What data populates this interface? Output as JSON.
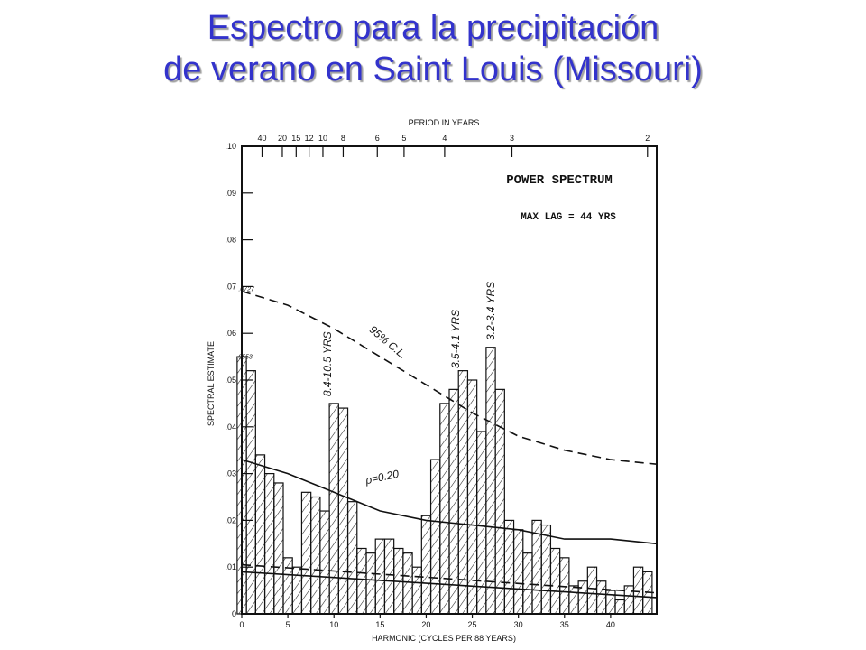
{
  "slide": {
    "title_line1": "Espectro para la precipitación",
    "title_line2": "de verano en Saint Louis (Missouri)"
  },
  "colors": {
    "title": "#3333cc",
    "ink": "#111111"
  },
  "chart_data": {
    "type": "bar",
    "title": "POWER SPECTRUM",
    "subtitle": "MAX LAG = 44 YRS",
    "xlabel": "HARMONIC (CYCLES PER 88 YEARS)",
    "ylabel": "SPECTRAL ESTIMATE",
    "top_axis_label": "PERIOD IN YEARS",
    "xlim": [
      0,
      45
    ],
    "ylim": [
      0,
      0.1
    ],
    "x_ticks": [
      0,
      5,
      10,
      15,
      20,
      25,
      30,
      35,
      40
    ],
    "x_tick_labels": [
      "0",
      "5",
      "10",
      "15",
      "20",
      "25",
      "30",
      "35",
      "40"
    ],
    "y_ticks": [
      0,
      0.01,
      0.02,
      0.03,
      0.04,
      0.05,
      0.06,
      0.07,
      0.08,
      0.09,
      0.1
    ],
    "y_tick_labels": [
      "0",
      ".01",
      ".02",
      ".03",
      ".04",
      ".05",
      ".06",
      ".07",
      ".08",
      ".09",
      ".10"
    ],
    "period_labels": [
      {
        "label": "40",
        "x": 2.2
      },
      {
        "label": "20",
        "x": 4.4
      },
      {
        "label": "15",
        "x": 5.9
      },
      {
        "label": "12",
        "x": 7.3
      },
      {
        "label": "10",
        "x": 8.8
      },
      {
        "label": "8",
        "x": 11
      },
      {
        "label": "6",
        "x": 14.7
      },
      {
        "label": "5",
        "x": 17.6
      },
      {
        "label": "4",
        "x": 22
      },
      {
        "label": "3",
        "x": 29.3
      },
      {
        "label": "2",
        "x": 44
      }
    ],
    "harmonics": [
      0,
      1,
      2,
      3,
      4,
      5,
      6,
      7,
      8,
      9,
      10,
      11,
      12,
      13,
      14,
      15,
      16,
      17,
      18,
      19,
      20,
      21,
      22,
      23,
      24,
      25,
      26,
      27,
      28,
      29,
      30,
      31,
      32,
      33,
      34,
      35,
      36,
      37,
      38,
      39,
      40,
      41,
      42,
      43,
      44
    ],
    "values": [
      0.055,
      0.052,
      0.034,
      0.03,
      0.028,
      0.012,
      0.01,
      0.026,
      0.025,
      0.022,
      0.045,
      0.044,
      0.024,
      0.014,
      0.013,
      0.016,
      0.016,
      0.014,
      0.013,
      0.01,
      0.021,
      0.033,
      0.045,
      0.048,
      0.052,
      0.05,
      0.039,
      0.057,
      0.048,
      0.02,
      0.018,
      0.013,
      0.02,
      0.019,
      0.014,
      0.012,
      0.006,
      0.007,
      0.01,
      0.007,
      0.005,
      0.003,
      0.006,
      0.01,
      0.009
    ],
    "curves": [
      {
        "name": "95% C.L.",
        "style": "dashed",
        "x": [
          0,
          5,
          10,
          15,
          20,
          25,
          30,
          35,
          40,
          45
        ],
        "y": [
          0.069,
          0.066,
          0.061,
          0.055,
          0.049,
          0.043,
          0.038,
          0.035,
          0.033,
          0.032
        ]
      },
      {
        "name": "ρ=0.20",
        "style": "solid",
        "x": [
          0,
          5,
          10,
          15,
          20,
          25,
          30,
          35,
          40,
          45
        ],
        "y": [
          0.033,
          0.03,
          0.026,
          0.022,
          0.02,
          0.019,
          0.018,
          0.016,
          0.016,
          0.015
        ]
      },
      {
        "name": "",
        "style": "dashed",
        "x": [
          0,
          45
        ],
        "y": [
          0.0105,
          0.0045
        ]
      },
      {
        "name": "",
        "style": "solid",
        "x": [
          0,
          45
        ],
        "y": [
          0.009,
          0.0035
        ]
      }
    ],
    "annotations": [
      {
        "text": "8.4-10.5 YRS",
        "x": 9.7,
        "y": 0.0465
      },
      {
        "text": "3.5-4.1 YRS",
        "x": 23.6,
        "y": 0.0525
      },
      {
        "text": "3.2-3.4 YRS",
        "x": 27.4,
        "y": 0.0585
      },
      {
        "text": "95% C.L.",
        "x": 15.6,
        "y": 0.0575
      },
      {
        "text": "ρ=0.20",
        "x": 15.3,
        "y": 0.0285
      },
      {
        "text": ".0727",
        "x": 0.5,
        "y": 0.069
      },
      {
        "text": ".0553",
        "x": 0.3,
        "y": 0.0545
      }
    ],
    "grid": false,
    "legend": "none"
  }
}
